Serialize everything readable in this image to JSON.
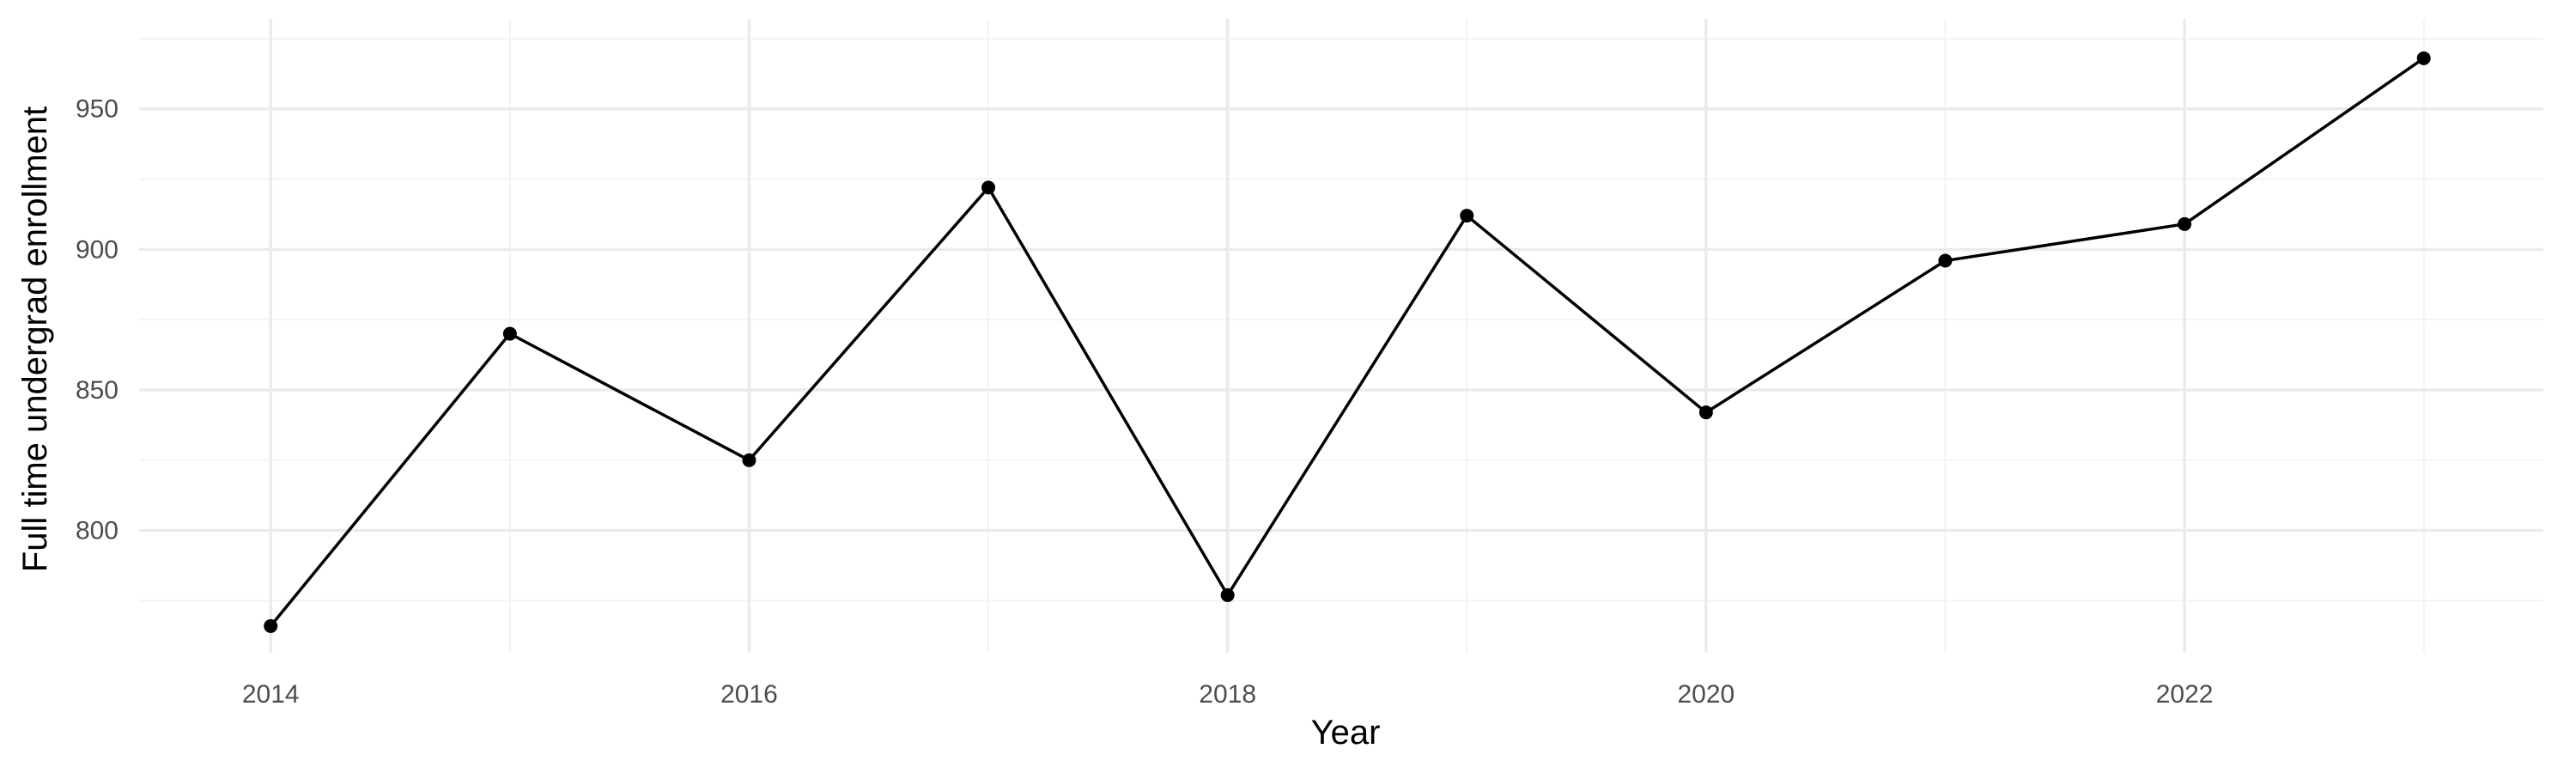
{
  "chart_data": {
    "type": "line",
    "title": "",
    "xlabel": "Year",
    "ylabel": "Full time undergrad enrollment",
    "x": [
      2014,
      2015,
      2016,
      2017,
      2018,
      2019,
      2020,
      2021,
      2022,
      2023
    ],
    "series": [
      {
        "values": [
          766,
          870,
          825,
          922,
          777,
          912,
          842,
          896,
          909,
          968
        ]
      }
    ],
    "x_ticks": [
      "2014",
      "2016",
      "2018",
      "2020",
      "2022"
    ],
    "y_ticks": [
      "800",
      "850",
      "900",
      "950"
    ],
    "xlim": [
      2013.45,
      2023.5
    ],
    "ylim": [
      756.5,
      982
    ],
    "grid": true,
    "legend": "none",
    "colors": {
      "line": "#000000",
      "point": "#000000",
      "grid_major": "#ebebeb",
      "grid_minor": "#f3f3f3",
      "tick_text": "#4d4d4d",
      "axis_title": "#000000"
    }
  }
}
